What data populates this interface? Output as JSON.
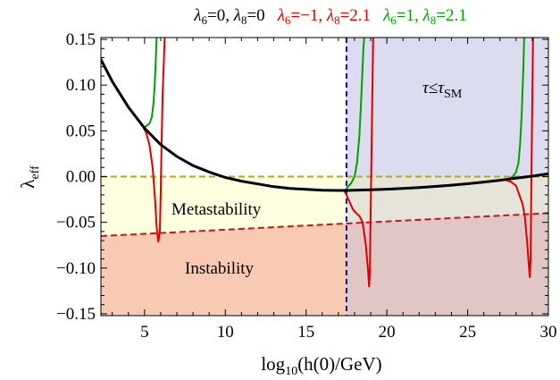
{
  "chart_data": {
    "type": "line",
    "legend": {
      "placement": "top",
      "entries": [
        {
          "l6": "0",
          "l8": "0",
          "color": "#000000"
        },
        {
          "l6": "−1",
          "l8": "2.1",
          "color": "#dd0000"
        },
        {
          "l6": "1",
          "l8": "2.1",
          "color": "#00a000"
        }
      ]
    },
    "xlabel": {
      "prefix": "log",
      "sub": "10",
      "suffix": "(h(0)/GeV)"
    },
    "ylabel": {
      "main": "λ",
      "sub": "eff"
    },
    "xlim": [
      2.3,
      30
    ],
    "ylim": [
      -0.152,
      0.152
    ],
    "xticks": [
      5,
      10,
      15,
      20,
      25,
      30
    ],
    "xtick_labels": [
      "5",
      "10",
      "15",
      "20",
      "25",
      "30"
    ],
    "yticks": [
      0.15,
      0.1,
      0.05,
      0.0,
      -0.05,
      -0.1,
      -0.15
    ],
    "ytick_labels": [
      "0.15",
      "0.10",
      "0.05",
      "0.00",
      "−0.05",
      "−0.10",
      "−0.15"
    ],
    "grid": false,
    "regions": {
      "tau_label": {
        "main": "τ≤τ",
        "sub": "SM"
      },
      "metastability_label": "Metastability",
      "instability_label": "Instability",
      "tau_boundary_x": 17.5,
      "metastability_boundary": [
        [
          2.3,
          0.0
        ],
        [
          30,
          0.0
        ]
      ],
      "instability_boundary": [
        [
          2.3,
          -0.065
        ],
        [
          30,
          -0.04
        ]
      ],
      "colors": {
        "tau": "#dcdcf0",
        "metastability": "#fdfde0",
        "instability": "#f8cab4",
        "overlap": "#e0c6c4"
      }
    },
    "series": [
      {
        "color": "#000000",
        "x": [
          2.3,
          3,
          4,
          5,
          6,
          7,
          8,
          9,
          10,
          11,
          12,
          13,
          14,
          15,
          16,
          17,
          17.5,
          18,
          19,
          20,
          21,
          22,
          23,
          24,
          25,
          26,
          27,
          28,
          29,
          30
        ],
        "y": [
          0.128,
          0.104,
          0.076,
          0.053,
          0.035,
          0.022,
          0.012,
          0.005,
          -0.001,
          -0.005,
          -0.008,
          -0.011,
          -0.013,
          -0.014,
          -0.015,
          -0.0152,
          -0.0152,
          -0.015,
          -0.0145,
          -0.0138,
          -0.013,
          -0.012,
          -0.0108,
          -0.0094,
          -0.0078,
          -0.006,
          -0.004,
          -0.0018,
          0.0005,
          0.003
        ]
      },
      {
        "color": "#dd0000",
        "x": [
          4.95,
          5.1,
          5.3,
          5.5,
          5.65,
          5.75,
          5.85,
          5.95,
          6.0,
          6.05,
          6.12,
          6.25,
          17.35,
          17.5,
          17.7,
          17.9,
          18.1,
          18.3,
          18.5,
          18.7,
          18.85,
          18.9,
          18.95,
          19.0,
          19.15,
          27.4,
          27.7,
          28.0,
          28.2,
          28.4,
          28.55,
          28.7,
          28.8,
          28.85,
          28.9,
          28.95,
          29.05
        ],
        "y": [
          0.053,
          0.048,
          0.035,
          0.01,
          -0.025,
          -0.055,
          -0.071,
          -0.06,
          -0.02,
          0.03,
          0.09,
          0.152,
          -0.015,
          -0.02,
          -0.028,
          -0.036,
          -0.04,
          -0.043,
          -0.05,
          -0.075,
          -0.105,
          -0.12,
          -0.105,
          -0.04,
          0.152,
          -0.004,
          -0.006,
          -0.01,
          -0.02,
          -0.03,
          -0.045,
          -0.075,
          -0.1,
          -0.11,
          -0.09,
          0.0,
          0.152
        ]
      },
      {
        "color": "#00a000",
        "x": [
          4.95,
          5.1,
          5.3,
          5.45,
          5.55,
          5.63,
          5.7,
          5.75,
          17.45,
          17.55,
          17.8,
          18.0,
          18.15,
          18.3,
          18.4,
          18.5,
          18.55,
          18.6,
          27.5,
          27.8,
          28.0,
          28.15,
          28.25,
          28.35,
          28.45,
          28.5
        ],
        "y": [
          0.053,
          0.055,
          0.058,
          0.065,
          0.08,
          0.1,
          0.13,
          0.152,
          -0.015,
          -0.012,
          -0.007,
          0.0,
          0.015,
          0.045,
          0.08,
          0.12,
          0.14,
          0.152,
          -0.003,
          0.0,
          0.005,
          0.015,
          0.035,
          0.07,
          0.12,
          0.152
        ]
      }
    ]
  }
}
